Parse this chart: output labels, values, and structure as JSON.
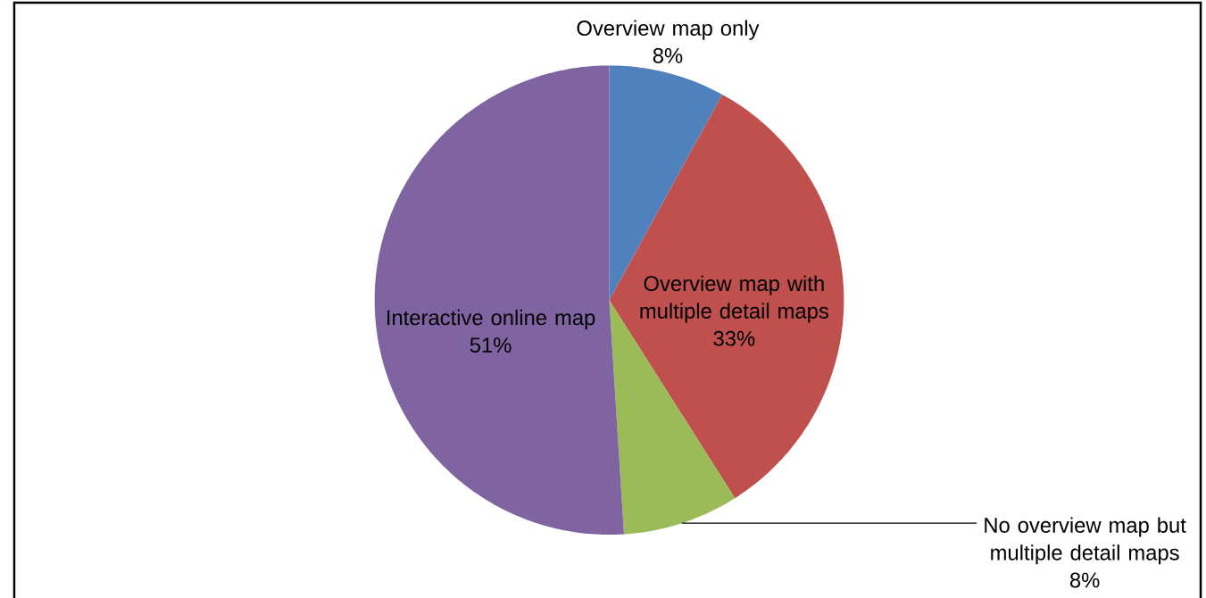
{
  "chart_data": {
    "type": "pie",
    "categories": [
      "Overview map only",
      "Overview map with multiple detail maps",
      "No overview map but multiple detail maps",
      "Interactive online map"
    ],
    "values": [
      8,
      33,
      8,
      51
    ],
    "colors": [
      "#4f81bd",
      "#c0504d",
      "#9bbb59",
      "#8064a2"
    ],
    "value_labels": [
      "8%",
      "33%",
      "8%",
      "51%"
    ]
  }
}
